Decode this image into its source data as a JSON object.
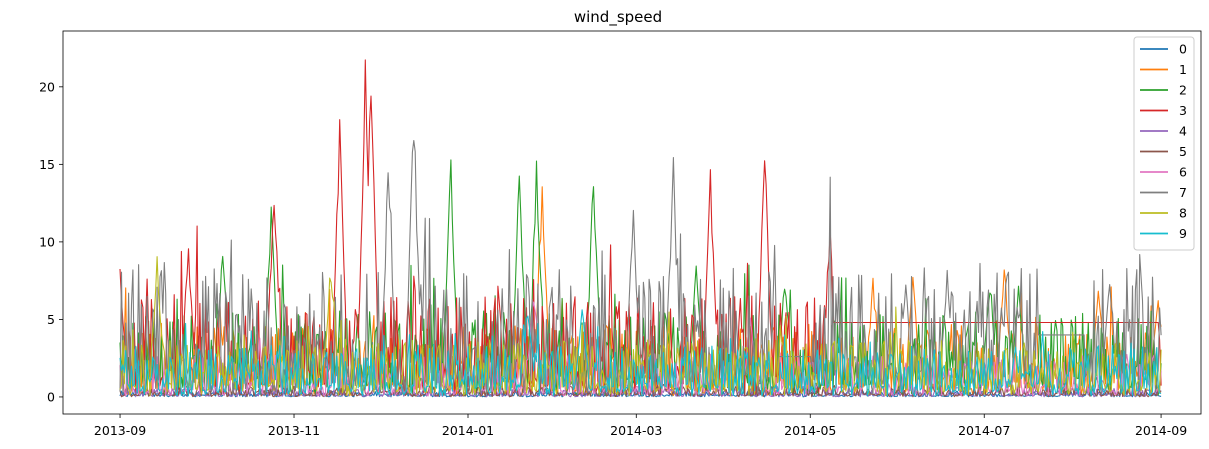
{
  "chart_data": {
    "type": "line",
    "title": "wind_speed",
    "xlabel": "",
    "ylabel": "",
    "x_range": [
      "2013-09-01",
      "2014-09-01"
    ],
    "xlim": [
      "2013-08-12",
      "2014-09-15"
    ],
    "ylim": [
      -1.1,
      23.6
    ],
    "x_ticks": [
      "2013-09",
      "2013-11",
      "2014-01",
      "2014-03",
      "2014-05",
      "2014-07",
      "2014-09"
    ],
    "y_ticks": [
      0,
      5,
      10,
      15,
      20
    ],
    "grid": false,
    "legend_position": "top-right",
    "series": [
      {
        "name": "0",
        "color": "#1f77b4",
        "profile": {
          "base": 0.2,
          "peaks": []
        }
      },
      {
        "name": "1",
        "color": "#ff7f0e",
        "profile": {
          "base": 2.5,
          "peaks": [
            [
              "2014-05-23",
              8.2
            ],
            [
              "2014-06-06",
              8.4
            ],
            [
              "2014-07-08",
              9.0
            ],
            [
              "2014-08-10",
              7.6
            ],
            [
              "2014-08-31",
              7.0
            ],
            [
              "2014-01-27",
              14.7
            ]
          ]
        }
      },
      {
        "name": "2",
        "color": "#2ca02c",
        "profile": {
          "base": 3.0,
          "peaks": [
            [
              "2013-10-07",
              10.5
            ],
            [
              "2013-10-24",
              12.5
            ],
            [
              "2013-12-26",
              16.3
            ],
            [
              "2014-01-19",
              15.8
            ],
            [
              "2014-01-25",
              15.5
            ],
            [
              "2014-02-14",
              15.7
            ],
            [
              "2014-03-22",
              8.5
            ],
            [
              "2014-04-22",
              8.0
            ],
            [
              "2014-07-03",
              8.3
            ],
            [
              "2014-07-13",
              8.2
            ]
          ]
        }
      },
      {
        "name": "3",
        "color": "#d62728",
        "profile": {
          "base": 3.5,
          "peaks": [
            [
              "2013-09-01",
              8.8
            ],
            [
              "2013-09-25",
              10.2
            ],
            [
              "2013-10-25",
              14.7
            ],
            [
              "2013-11-17",
              19.2
            ],
            [
              "2013-11-28",
              22.5
            ],
            [
              "2013-11-26",
              21.8
            ],
            [
              "2014-03-27",
              15.0
            ],
            [
              "2014-04-15",
              16.7
            ],
            [
              "2014-05-08",
              12.3
            ],
            [
              "2014-08-28",
              8.3
            ]
          ],
          "flat": [
            [
              "2014-05-09",
              "2014-08-31",
              4.8
            ]
          ]
        }
      },
      {
        "name": "4",
        "color": "#9467bd",
        "profile": {
          "base": 0.3,
          "peaks": []
        }
      },
      {
        "name": "5",
        "color": "#8c564b",
        "profile": {
          "base": 0.4,
          "peaks": []
        }
      },
      {
        "name": "6",
        "color": "#e377c2",
        "profile": {
          "base": 1.5,
          "peaks": [
            [
              "2014-01-24",
              7.5
            ],
            [
              "2014-04-10",
              5.5
            ]
          ]
        }
      },
      {
        "name": "7",
        "color": "#7f7f7f",
        "profile": {
          "base": 4.5,
          "peaks": [
            [
              "2013-12-13",
              19.1
            ],
            [
              "2013-12-04",
              15.4
            ],
            [
              "2014-03-14",
              15.7
            ],
            [
              "2014-02-28",
              13.0
            ],
            [
              "2014-06-18",
              8.8
            ],
            [
              "2014-08-14",
              8.2
            ]
          ],
          "flat": [
            [
              "2014-04-20",
              "2014-05-01",
              2.6
            ],
            [
              "2014-07-20",
              "2014-08-05",
              4.0
            ]
          ]
        }
      },
      {
        "name": "8",
        "color": "#bcbd22",
        "profile": {
          "base": 2.0,
          "peaks": [
            [
              "2013-09-14",
              9.9
            ],
            [
              "2013-11-14",
              9.2
            ]
          ]
        }
      },
      {
        "name": "9",
        "color": "#17becf",
        "profile": {
          "base": 1.8,
          "peaks": [
            [
              "2014-01-22",
              6.2
            ],
            [
              "2014-02-10",
              6.0
            ]
          ]
        }
      }
    ]
  }
}
